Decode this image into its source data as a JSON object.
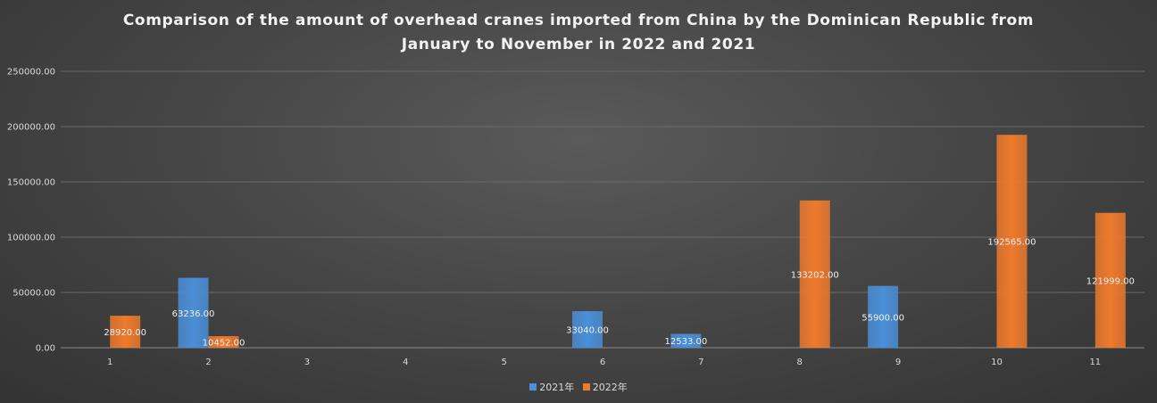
{
  "chart_data": {
    "type": "bar",
    "title_lines": [
      "Comparison of the amount of overhead cranes imported from China by the Dominican Republic from",
      "January to November in 2022 and 2021"
    ],
    "categories": [
      "1",
      "2",
      "3",
      "4",
      "5",
      "6",
      "7",
      "8",
      "9",
      "10",
      "11"
    ],
    "series": [
      {
        "name": "2021年",
        "color": "#4a8fd8",
        "values": [
          null,
          63236.0,
          null,
          null,
          null,
          33040.0,
          12533.0,
          null,
          55900.0,
          null,
          null
        ],
        "labels": [
          "",
          "63236.00",
          "",
          "",
          "",
          "33040.00",
          "12533.00",
          "",
          "55900.00",
          "",
          ""
        ]
      },
      {
        "name": "2022年",
        "color": "#ee7a2c",
        "values": [
          28920.0,
          10452.0,
          null,
          null,
          null,
          null,
          null,
          133202.0,
          null,
          192565.0,
          121999.0
        ],
        "labels": [
          "28920.00",
          "10452.00",
          "",
          "",
          "",
          "",
          "",
          "133202.00",
          "",
          "192565.00",
          "121999.00"
        ]
      }
    ],
    "y_ticks": [
      "0.00",
      "50000.00",
      "100000.00",
      "150000.00",
      "200000.00",
      "250000.00"
    ],
    "ylim": [
      0,
      250000
    ],
    "grid": true,
    "legend_position": "bottom"
  }
}
